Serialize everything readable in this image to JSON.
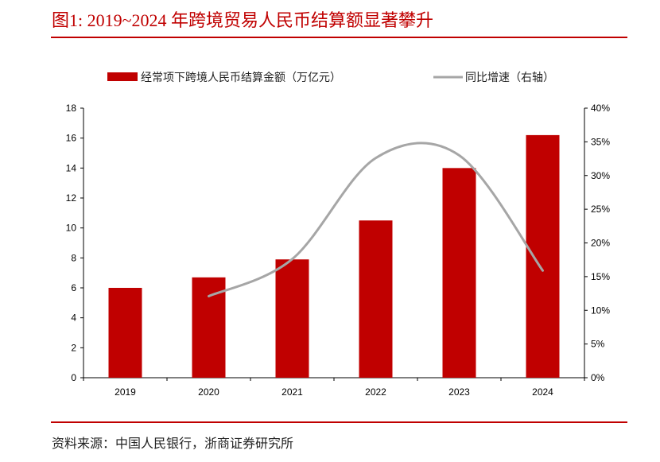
{
  "title": "图1:  2019~2024 年跨境贸易人民币结算额显著攀升",
  "source": "资料来源：中国人民银行，浙商证券研究所",
  "colors": {
    "bar": "#c00000",
    "line": "#a6a6a6",
    "accent": "#c00000"
  },
  "chart_data": {
    "type": "bar+line",
    "categories": [
      "2019",
      "2020",
      "2021",
      "2022",
      "2023",
      "2024"
    ],
    "series": [
      {
        "name": "经常项下跨境人民币结算金额（万亿元）",
        "type": "bar",
        "axis": "left",
        "values": [
          6.0,
          6.7,
          7.9,
          10.5,
          14.0,
          16.2
        ]
      },
      {
        "name": "同比增速（右轴）",
        "type": "line",
        "smooth": true,
        "axis": "right",
        "values": [
          null,
          12.1,
          17.6,
          32.6,
          33.0,
          15.9
        ]
      }
    ],
    "left_axis": {
      "ylim": [
        0,
        18
      ],
      "ticks": [
        "0",
        "2",
        "4",
        "6",
        "8",
        "10",
        "12",
        "14",
        "16",
        "18"
      ]
    },
    "right_axis": {
      "ylim": [
        0,
        40
      ],
      "ticks": [
        "0%",
        "5%",
        "10%",
        "15%",
        "20%",
        "25%",
        "30%",
        "35%",
        "40%"
      ]
    },
    "legend": "top",
    "grid": false
  }
}
